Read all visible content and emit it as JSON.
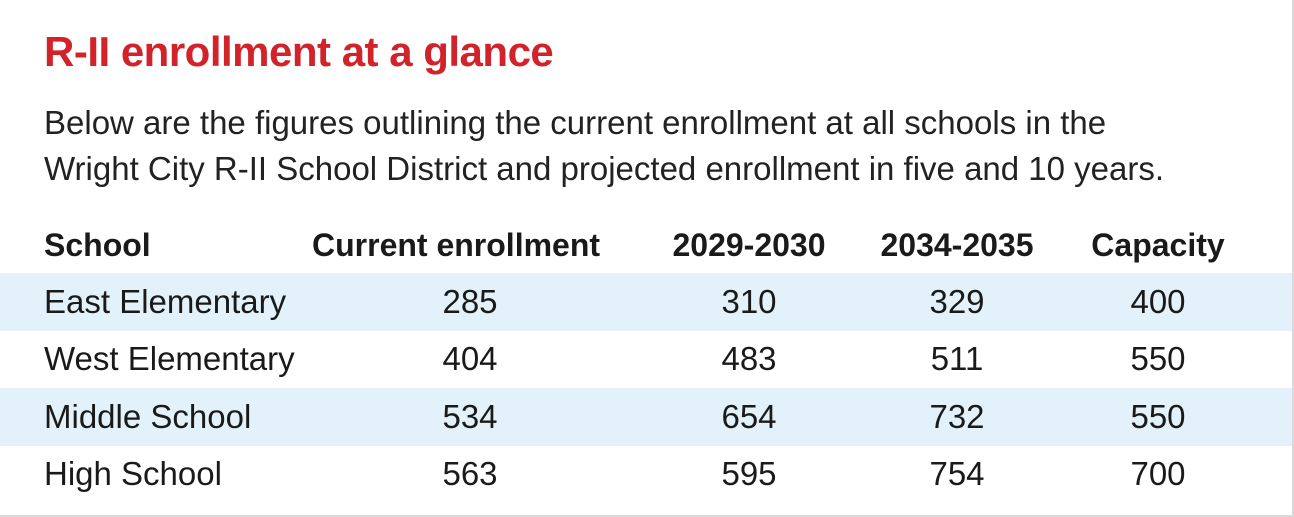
{
  "title": "R-II enrollment at a glance",
  "subtitle_lines": [
    "Below are the figures outlining the current enrollment at all schools in the",
    "Wright City R-II School District and projected enrollment in five and 10 years."
  ],
  "colors": {
    "title": "#d2232a",
    "row_shade": "#e3f2fa",
    "text": "#1a1a1a"
  },
  "chart_data": {
    "type": "table",
    "title": "R-II enrollment at a glance",
    "columns": [
      "School",
      "Current enrollment",
      "2029-2030",
      "2034-2035",
      "Capacity"
    ],
    "rows": [
      [
        "East Elementary",
        "285",
        "310",
        "329",
        "400"
      ],
      [
        "West Elementary",
        "404",
        "483",
        "511",
        "550"
      ],
      [
        "Middle School",
        "534",
        "654",
        "732",
        "550"
      ],
      [
        "High School",
        "563",
        "595",
        "754",
        "700"
      ]
    ],
    "shaded_rows": [
      0,
      2
    ]
  }
}
